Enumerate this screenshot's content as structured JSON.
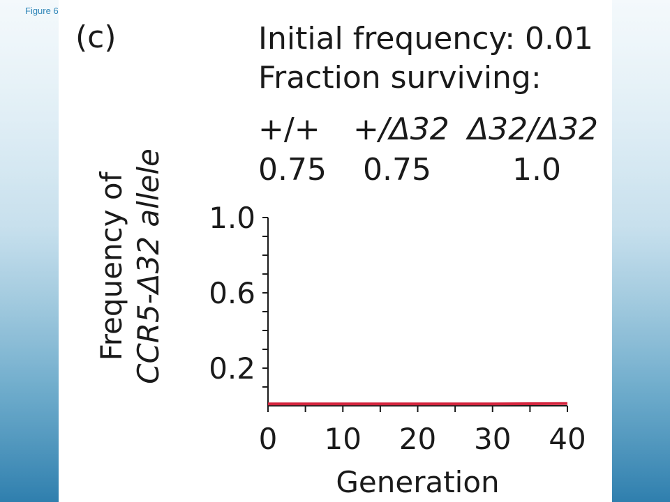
{
  "figure_label": "Figure 6",
  "panel_tag": "(c)",
  "initial_frequency_text": "Initial frequency: 0.01",
  "fraction_surviving_text": "Fraction surviving:",
  "genotypes": [
    "+/+",
    "+/Δ32",
    "Δ32/Δ32"
  ],
  "survival_values": [
    "0.75",
    "0.75",
    "1.0"
  ],
  "colors": {
    "line": "#d4253e",
    "axis": "#1a1a1a"
  },
  "chart_data": {
    "type": "line",
    "xlabel": "Generation",
    "ylabel_line1": "Frequency of",
    "ylabel_line2": "CCR5-Δ32 allele",
    "xlim": [
      0,
      40
    ],
    "ylim": [
      0,
      1.0
    ],
    "x_ticks": [
      0,
      10,
      20,
      30,
      40
    ],
    "y_ticks": [
      1.0,
      0.6,
      0.2
    ],
    "y_tick_labels": [
      "1.0",
      "0.6",
      "0.2"
    ],
    "series": [
      {
        "x": [
          0,
          5,
          10,
          15,
          20,
          25,
          30,
          35,
          40
        ],
        "values": [
          0.01,
          0.01,
          0.01,
          0.01,
          0.01,
          0.01,
          0.01,
          0.011,
          0.012
        ]
      }
    ]
  }
}
